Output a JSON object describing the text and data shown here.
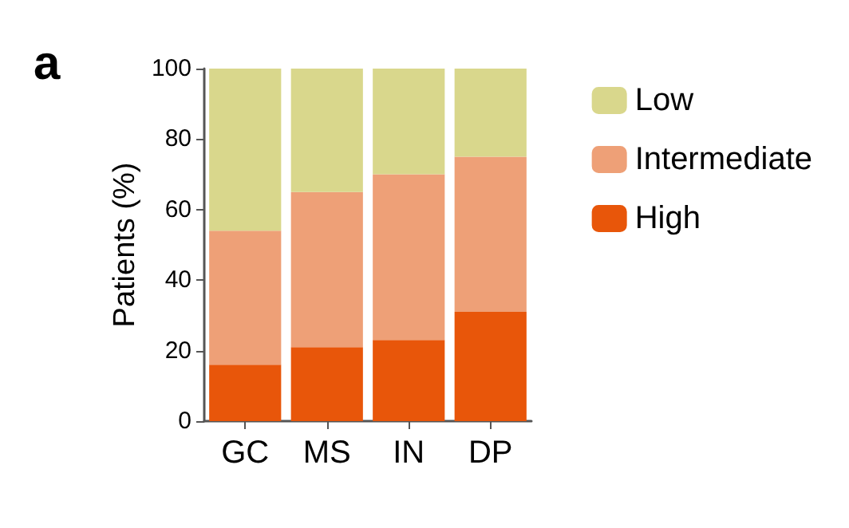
{
  "chart_data": {
    "type": "bar",
    "title": "a",
    "ylabel": "Patients (%)",
    "categories": [
      "GC",
      "MS",
      "IN",
      "DP"
    ],
    "stacked": true,
    "series": [
      {
        "name": "High",
        "color": "#e8560a",
        "values": [
          16,
          21,
          23,
          31
        ]
      },
      {
        "name": "Intermediate",
        "color": "#eea077",
        "values": [
          38,
          44,
          47,
          44
        ]
      },
      {
        "name": "Low",
        "color": "#d9d78c",
        "values": [
          46,
          35,
          30,
          25
        ]
      }
    ],
    "ylim": [
      0,
      100
    ],
    "yticks": [
      0,
      20,
      40,
      60,
      80,
      100
    ],
    "grid": false,
    "legend": "right"
  }
}
